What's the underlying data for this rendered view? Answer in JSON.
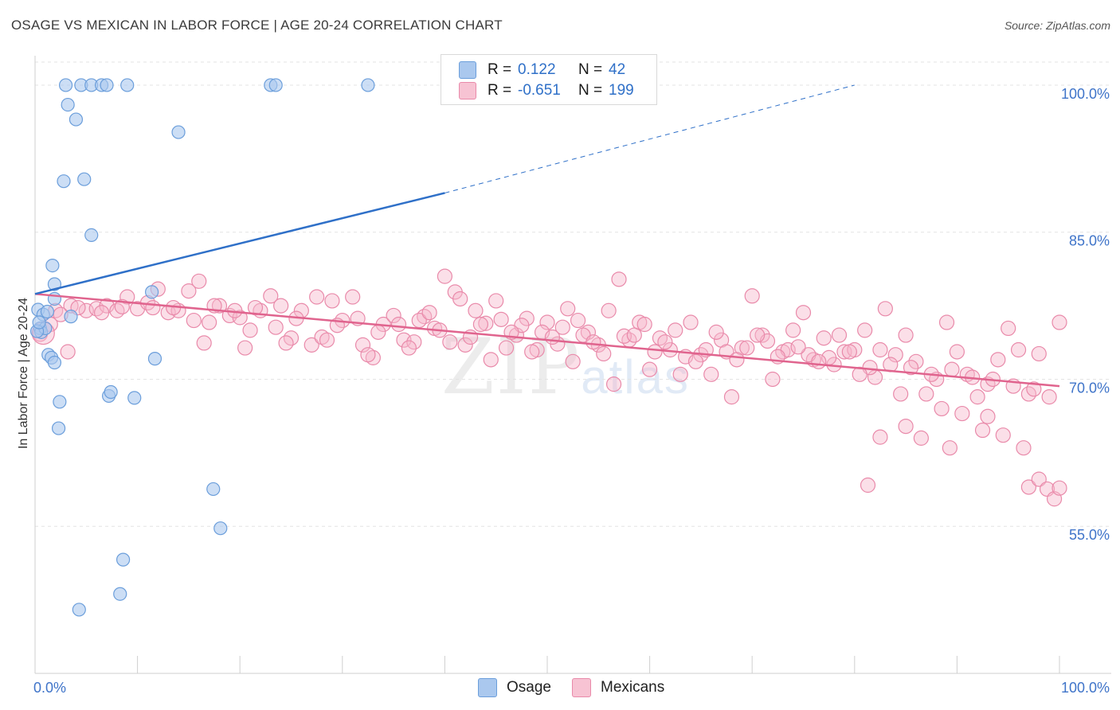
{
  "title": "OSAGE VS MEXICAN IN LABOR FORCE | AGE 20-24 CORRELATION CHART",
  "source": "Source: ZipAtlas.com",
  "watermark": {
    "zip": "ZIP",
    "atlas": "atlas"
  },
  "legend": {
    "osage": {
      "r_label": "R =",
      "r_value": "0.122",
      "n_label": "N =",
      "n_value": "42"
    },
    "mexicans": {
      "r_label": "R =",
      "r_value": "-0.651",
      "n_label": "N =",
      "n_value": "199"
    }
  },
  "bottom_legend": {
    "osage": "Osage",
    "mexicans": "Mexicans"
  },
  "chart_data": {
    "type": "scatter",
    "title": "OSAGE VS MEXICAN IN LABOR FORCE | AGE 20-24 CORRELATION CHART",
    "xlabel": "",
    "ylabel": "In Labor Force | Age 20-24",
    "xlim": [
      0,
      100
    ],
    "ylim": [
      40,
      103
    ],
    "x_tick_labels": [
      "0.0%",
      "100.0%"
    ],
    "y_ticks": [
      55,
      70,
      85,
      100
    ],
    "y_tick_labels": [
      "55.0%",
      "70.0%",
      "85.0%",
      "100.0%"
    ],
    "colors": {
      "osage_fill": "#aac8ee",
      "osage_stroke": "#6b9edb",
      "osage_line": "#2f70c8",
      "mexicans_fill": "#f7b7cb",
      "mexicans_stroke": "#e98aaa",
      "mexicans_line": "#e0648e",
      "tick_label": "#3f74c9",
      "grid": "#e3e3e3"
    },
    "series": [
      {
        "name": "Osage",
        "r": 0.122,
        "n": 42,
        "trend": {
          "x0": 0,
          "y0": 78.7,
          "x1": 40,
          "y1": 89.0,
          "dash_to_x": 80,
          "dash_to_y": 100.0
        },
        "points": [
          [
            3,
            100
          ],
          [
            4.5,
            100
          ],
          [
            5.5,
            100
          ],
          [
            6.5,
            100
          ],
          [
            7,
            100
          ],
          [
            9,
            100
          ],
          [
            23,
            100
          ],
          [
            23.5,
            100
          ],
          [
            32.5,
            100
          ],
          [
            3.2,
            98
          ],
          [
            4,
            96.5
          ],
          [
            14,
            95.2
          ],
          [
            2.8,
            90.2
          ],
          [
            4.8,
            90.4
          ],
          [
            5.5,
            84.7
          ],
          [
            1.7,
            81.6
          ],
          [
            1.9,
            79.7
          ],
          [
            1.9,
            78.2
          ],
          [
            11.4,
            78.9
          ],
          [
            0.3,
            77.1
          ],
          [
            0.8,
            76.6
          ],
          [
            1.2,
            76.9
          ],
          [
            3.5,
            76.4
          ],
          [
            0.5,
            75.2
          ],
          [
            0.6,
            74.8
          ],
          [
            1.0,
            75.2
          ],
          [
            1.3,
            72.5
          ],
          [
            1.6,
            72.2
          ],
          [
            1.9,
            71.7
          ],
          [
            11.7,
            72.1
          ],
          [
            7.2,
            68.3
          ],
          [
            7.4,
            68.7
          ],
          [
            9.7,
            68.1
          ],
          [
            2.4,
            67.7
          ],
          [
            2.3,
            65.0
          ],
          [
            17.4,
            58.8
          ],
          [
            18.1,
            54.8
          ],
          [
            8.6,
            51.6
          ],
          [
            8.3,
            48.1
          ],
          [
            4.3,
            46.5
          ],
          [
            0.2,
            74.9
          ],
          [
            0.4,
            75.8
          ]
        ]
      },
      {
        "name": "Mexicans",
        "r": -0.651,
        "n": 199,
        "trend": {
          "x0": 0,
          "y0": 78.7,
          "x1": 100,
          "y1": 69.3
        },
        "points": [
          [
            0.5,
            74.6
          ],
          [
            1.5,
            75.6
          ],
          [
            3.2,
            72.8
          ],
          [
            2.0,
            77.0
          ],
          [
            3.5,
            77.5
          ],
          [
            5.0,
            77.0
          ],
          [
            6.0,
            77.2
          ],
          [
            7.0,
            77.5
          ],
          [
            8.0,
            77.0
          ],
          [
            9.0,
            78.4
          ],
          [
            10.0,
            77.2
          ],
          [
            11.0,
            77.8
          ],
          [
            12.0,
            79.2
          ],
          [
            13.0,
            76.8
          ],
          [
            14.0,
            77.0
          ],
          [
            15.0,
            79.0
          ],
          [
            16.0,
            80.0
          ],
          [
            17.0,
            75.8
          ],
          [
            18.0,
            77.5
          ],
          [
            19.0,
            76.5
          ],
          [
            20.0,
            76.3
          ],
          [
            21.0,
            75.0
          ],
          [
            22.0,
            77.0
          ],
          [
            23.0,
            78.5
          ],
          [
            24.0,
            77.5
          ],
          [
            25.0,
            74.2
          ],
          [
            26.0,
            77.0
          ],
          [
            27.0,
            73.5
          ],
          [
            28.0,
            74.3
          ],
          [
            29.0,
            78.0
          ],
          [
            30.0,
            76.0
          ],
          [
            31.0,
            78.4
          ],
          [
            32.0,
            73.5
          ],
          [
            33.0,
            72.2
          ],
          [
            34.0,
            75.6
          ],
          [
            35.0,
            76.5
          ],
          [
            36.0,
            74.0
          ],
          [
            37.0,
            73.8
          ],
          [
            38.0,
            76.4
          ],
          [
            39.0,
            75.2
          ],
          [
            40.0,
            80.5
          ],
          [
            41.0,
            78.9
          ],
          [
            42.0,
            73.5
          ],
          [
            43.0,
            77.0
          ],
          [
            44.0,
            75.7
          ],
          [
            45.0,
            78.0
          ],
          [
            46.0,
            73.2
          ],
          [
            47.0,
            74.5
          ],
          [
            48.0,
            76.2
          ],
          [
            49.0,
            73.0
          ],
          [
            50.0,
            75.8
          ],
          [
            51.0,
            73.6
          ],
          [
            52.0,
            77.2
          ],
          [
            53.0,
            76.0
          ],
          [
            54.0,
            74.8
          ],
          [
            55.0,
            73.5
          ],
          [
            56.0,
            77.0
          ],
          [
            57.0,
            80.2
          ],
          [
            58.0,
            74.0
          ],
          [
            59.0,
            75.8
          ],
          [
            60.0,
            71.0
          ],
          [
            61.0,
            74.2
          ],
          [
            62.0,
            73.0
          ],
          [
            63.0,
            70.5
          ],
          [
            64.0,
            75.8
          ],
          [
            65.0,
            72.5
          ],
          [
            66.0,
            70.5
          ],
          [
            67.0,
            74.0
          ],
          [
            68.0,
            68.2
          ],
          [
            69.0,
            73.2
          ],
          [
            70.0,
            78.5
          ],
          [
            71.0,
            74.5
          ],
          [
            72.0,
            70.0
          ],
          [
            73.0,
            72.8
          ],
          [
            74.0,
            75.0
          ],
          [
            75.0,
            76.8
          ],
          [
            76.0,
            72.0
          ],
          [
            77.0,
            74.2
          ],
          [
            78.0,
            71.5
          ],
          [
            79.0,
            72.8
          ],
          [
            80.0,
            73.0
          ],
          [
            81.0,
            75.0
          ],
          [
            82.0,
            70.2
          ],
          [
            83.0,
            77.2
          ],
          [
            84.0,
            72.5
          ],
          [
            85.0,
            74.5
          ],
          [
            86.0,
            71.8
          ],
          [
            87.0,
            68.5
          ],
          [
            88.0,
            70.0
          ],
          [
            89.0,
            75.8
          ],
          [
            90.0,
            72.8
          ],
          [
            91.0,
            70.5
          ],
          [
            92.0,
            68.2
          ],
          [
            93.0,
            69.5
          ],
          [
            94.0,
            72.0
          ],
          [
            95.0,
            75.2
          ],
          [
            96.0,
            73.0
          ],
          [
            97.0,
            68.5
          ],
          [
            98.0,
            72.6
          ],
          [
            99.0,
            68.2
          ],
          [
            100.0,
            75.8
          ],
          [
            2.5,
            76.6
          ],
          [
            4.2,
            77.3
          ],
          [
            6.5,
            76.8
          ],
          [
            8.5,
            77.4
          ],
          [
            11.5,
            77.3
          ],
          [
            13.5,
            77.3
          ],
          [
            15.5,
            76.0
          ],
          [
            17.5,
            77.5
          ],
          [
            19.5,
            77.0
          ],
          [
            21.5,
            77.3
          ],
          [
            23.5,
            75.3
          ],
          [
            25.5,
            76.2
          ],
          [
            27.5,
            78.4
          ],
          [
            29.5,
            75.5
          ],
          [
            31.5,
            76.2
          ],
          [
            33.5,
            74.8
          ],
          [
            35.5,
            75.6
          ],
          [
            37.5,
            76.0
          ],
          [
            39.5,
            75.0
          ],
          [
            41.5,
            78.2
          ],
          [
            43.5,
            75.6
          ],
          [
            45.5,
            76.1
          ],
          [
            47.5,
            75.5
          ],
          [
            49.5,
            74.8
          ],
          [
            51.5,
            75.3
          ],
          [
            53.5,
            74.5
          ],
          [
            55.5,
            72.6
          ],
          [
            57.5,
            74.4
          ],
          [
            59.5,
            75.6
          ],
          [
            61.5,
            73.8
          ],
          [
            63.5,
            72.3
          ],
          [
            65.5,
            73.0
          ],
          [
            67.5,
            72.8
          ],
          [
            69.5,
            73.2
          ],
          [
            71.5,
            73.9
          ],
          [
            73.5,
            73.0
          ],
          [
            75.5,
            72.5
          ],
          [
            77.5,
            72.2
          ],
          [
            79.5,
            72.8
          ],
          [
            81.5,
            71.2
          ],
          [
            83.5,
            71.5
          ],
          [
            85.5,
            71.2
          ],
          [
            87.5,
            70.5
          ],
          [
            89.5,
            71.0
          ],
          [
            91.5,
            70.2
          ],
          [
            93.5,
            70.0
          ],
          [
            95.5,
            69.3
          ],
          [
            97.5,
            69.0
          ],
          [
            16.5,
            73.7
          ],
          [
            20.5,
            73.2
          ],
          [
            24.5,
            73.7
          ],
          [
            28.5,
            74.0
          ],
          [
            32.5,
            72.5
          ],
          [
            36.5,
            73.2
          ],
          [
            40.5,
            73.8
          ],
          [
            44.5,
            72.0
          ],
          [
            48.5,
            72.8
          ],
          [
            52.5,
            71.8
          ],
          [
            56.5,
            69.5
          ],
          [
            60.5,
            72.8
          ],
          [
            64.5,
            71.8
          ],
          [
            68.5,
            72.0
          ],
          [
            72.5,
            72.3
          ],
          [
            76.5,
            71.8
          ],
          [
            80.5,
            70.5
          ],
          [
            84.5,
            68.5
          ],
          [
            88.5,
            67.0
          ],
          [
            90.5,
            66.5
          ],
          [
            92.5,
            64.8
          ],
          [
            94.5,
            64.3
          ],
          [
            96.5,
            63.0
          ],
          [
            81.3,
            59.2
          ],
          [
            97.0,
            59.0
          ],
          [
            98.0,
            59.8
          ],
          [
            98.8,
            58.8
          ],
          [
            99.5,
            57.8
          ],
          [
            100.0,
            58.9
          ],
          [
            82.5,
            64.1
          ],
          [
            85.0,
            65.2
          ],
          [
            86.5,
            64.0
          ],
          [
            89.3,
            63.0
          ],
          [
            93.0,
            66.2
          ],
          [
            38.5,
            76.8
          ],
          [
            42.5,
            74.3
          ],
          [
            46.5,
            74.8
          ],
          [
            50.5,
            74.3
          ],
          [
            54.5,
            73.8
          ],
          [
            58.5,
            74.5
          ],
          [
            62.5,
            75.0
          ],
          [
            66.5,
            74.8
          ],
          [
            70.5,
            74.5
          ],
          [
            74.5,
            73.3
          ],
          [
            78.5,
            74.5
          ],
          [
            82.5,
            73.0
          ]
        ]
      }
    ]
  }
}
